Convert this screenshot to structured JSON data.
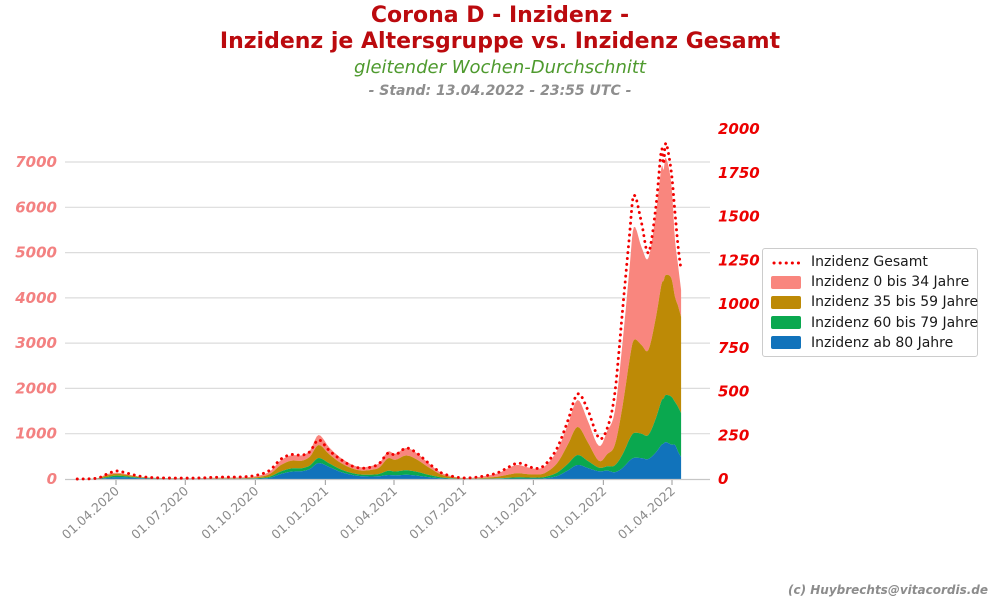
{
  "header": {
    "title_line1": "Corona D - Inzidenz -",
    "title_line2": "Inzidenz je Altersgruppe vs. Inzidenz Gesamt",
    "subtitle": "gleitender Wochen-Durchschnitt",
    "stand": "- Stand: 13.04.2022 - 23:55 UTC -"
  },
  "footer": {
    "copyright": "(c) Huybrechts@vitacordis.de"
  },
  "colors": {
    "title": "#bb0a0e",
    "subtitle": "#4e9a2e",
    "stand": "#8e8e8e",
    "left_axis_labels": "#f38181",
    "right_axis_labels": "#ec0000",
    "x_axis_labels": "#8a8a8a",
    "grid": "#dcdcdc",
    "axis_line": "#c6c6c6",
    "tick_mark": "#aaaaaa",
    "dotted_line": "#f20000",
    "area_0_34": "#f9867e",
    "area_35_59": "#bd8a06",
    "area_60_79": "#0aa84f",
    "area_ab80": "#1173bb",
    "legend_text": "#1a1a1a",
    "copyright": "#8c8c8c"
  },
  "legend": {
    "items": [
      {
        "label": "Inzidenz Gesamt",
        "swatch": "dotted-line",
        "color": "#f20000"
      },
      {
        "label": "Inzidenz 0 bis 34 Jahre",
        "swatch": "patch",
        "color": "#f9867e"
      },
      {
        "label": "Inzidenz 35 bis 59 Jahre",
        "swatch": "patch",
        "color": "#bd8a06"
      },
      {
        "label": "Inzidenz 60 bis 79 Jahre",
        "swatch": "patch",
        "color": "#0aa84f"
      },
      {
        "label": "Inzidenz ab 80 Jahre",
        "swatch": "patch",
        "color": "#1173bb"
      }
    ]
  },
  "chart_data": {
    "type": "area",
    "subtype": "stacked-areas-with-dotted-line-on-secondary-axis",
    "title": "Corona D - Inzidenz - Inzidenz je Altersgruppe vs. Inzidenz Gesamt",
    "grid": true,
    "legend_position": "center-right",
    "axes": {
      "left": {
        "ticks": [
          0,
          1000,
          2000,
          3000,
          4000,
          5000,
          6000,
          7000
        ],
        "range": [
          0,
          7000
        ],
        "applies_to": "stacked age-group areas"
      },
      "right": {
        "ticks": [
          0,
          250,
          500,
          750,
          1000,
          1250,
          1500,
          1750,
          2000
        ],
        "range": [
          0,
          2000
        ],
        "applies_to": "Inzidenz Gesamt dotted line"
      },
      "x": {
        "tick_labels": [
          "01.04.2020",
          "01.07.2020",
          "01.10.2020",
          "01.01.2021",
          "01.04.2021",
          "01.07.2021",
          "01.10.2021",
          "01.01.2022",
          "01.04.2022"
        ]
      }
    },
    "dates": [
      "2020-02-10",
      "2020-03-01",
      "2020-03-10",
      "2020-03-20",
      "2020-04-01",
      "2020-04-12",
      "2020-04-22",
      "2020-05-05",
      "2020-05-20",
      "2020-06-05",
      "2020-06-20",
      "2020-07-05",
      "2020-07-20",
      "2020-08-05",
      "2020-08-20",
      "2020-09-05",
      "2020-09-20",
      "2020-10-05",
      "2020-10-20",
      "2020-11-03",
      "2020-11-17",
      "2020-12-01",
      "2020-12-12",
      "2020-12-23",
      "2021-01-06",
      "2021-01-20",
      "2021-02-04",
      "2021-02-17",
      "2021-03-02",
      "2021-03-13",
      "2021-03-24",
      "2021-04-03",
      "2021-04-17",
      "2021-05-01",
      "2021-05-15",
      "2021-06-01",
      "2021-06-16",
      "2021-07-01",
      "2021-07-16",
      "2021-08-01",
      "2021-08-16",
      "2021-09-01",
      "2021-09-11",
      "2021-09-23",
      "2021-10-04",
      "2021-10-16",
      "2021-11-01",
      "2021-11-15",
      "2021-11-28",
      "2021-12-11",
      "2021-12-26",
      "2022-01-06",
      "2022-01-16",
      "2022-01-26",
      "2022-02-04",
      "2022-02-10",
      "2022-02-20",
      "2022-03-01",
      "2022-03-11",
      "2022-03-18",
      "2022-03-21",
      "2022-03-24",
      "2022-03-31",
      "2022-04-05",
      "2022-04-09",
      "2022-04-13"
    ],
    "series": [
      {
        "name": "Inzidenz Gesamt",
        "type": "dotted-line",
        "axis": "right",
        "color": "#f20000",
        "values": [
          0,
          2,
          8,
          28,
          46,
          38,
          26,
          14,
          8,
          6,
          5,
          5,
          6,
          9,
          11,
          11,
          14,
          24,
          50,
          112,
          140,
          136,
          158,
          224,
          162,
          115,
          76,
          62,
          68,
          90,
          148,
          138,
          177,
          148,
          96,
          38,
          16,
          6,
          9,
          20,
          37,
          74,
          91,
          76,
          60,
          80,
          175,
          330,
          487,
          400,
          234,
          290,
          490,
          960,
          1380,
          1623,
          1465,
          1291,
          1560,
          1880,
          1800,
          1920,
          1760,
          1520,
          1330,
          1194
        ]
      },
      {
        "name": "Inzidenz ab 80 Jahre",
        "type": "stacked-area",
        "stack_order": 1,
        "axis": "left",
        "color": "#1173bb",
        "values": [
          0,
          1,
          5,
          22,
          42,
          38,
          28,
          15,
          8,
          4,
          3,
          2,
          2,
          2,
          3,
          3,
          5,
          10,
          28,
          108,
          162,
          172,
          225,
          353,
          265,
          162,
          92,
          62,
          56,
          62,
          88,
          80,
          92,
          74,
          44,
          16,
          6,
          2,
          2,
          3,
          5,
          10,
          12,
          11,
          11,
          16,
          65,
          185,
          310,
          245,
          170,
          185,
          150,
          240,
          400,
          465,
          460,
          442,
          590,
          750,
          780,
          815,
          760,
          750,
          600,
          486
        ]
      },
      {
        "name": "Inzidenz 60 bis 79 Jahre",
        "type": "stacked-area",
        "stack_order": 2,
        "axis": "left",
        "color": "#0aa84f",
        "values": [
          0,
          1,
          6,
          20,
          32,
          26,
          18,
          10,
          6,
          4,
          3,
          2,
          2,
          3,
          4,
          4,
          5,
          10,
          24,
          56,
          70,
          66,
          78,
          111,
          80,
          58,
          42,
          36,
          40,
          52,
          92,
          85,
          100,
          84,
          54,
          22,
          9,
          3,
          3,
          6,
          10,
          20,
          25,
          22,
          21,
          28,
          75,
          145,
          220,
          160,
          80,
          95,
          150,
          300,
          470,
          550,
          540,
          529,
          760,
          970,
          1000,
          1040,
          1060,
          950,
          990,
          971
        ]
      },
      {
        "name": "Inzidenz 35 bis 59 Jahre",
        "type": "stacked-area",
        "stack_order": 3,
        "axis": "left",
        "color": "#bd8a06",
        "values": [
          0,
          2,
          12,
          38,
          42,
          34,
          24,
          14,
          9,
          7,
          6,
          5,
          6,
          8,
          10,
          10,
          13,
          24,
          58,
          138,
          172,
          166,
          196,
          287,
          200,
          146,
          106,
          88,
          106,
          142,
          278,
          258,
          328,
          272,
          176,
          68,
          28,
          9,
          11,
          22,
          39,
          76,
          90,
          76,
          68,
          86,
          205,
          420,
          620,
          420,
          150,
          270,
          450,
          1060,
          1730,
          2055,
          1960,
          1878,
          2230,
          2560,
          2600,
          2650,
          2620,
          2320,
          2230,
          2120
        ]
      },
      {
        "name": "Inzidenz 0 bis 34 Jahre",
        "type": "stacked-area",
        "stack_order": 4,
        "axis": "left",
        "color": "#f9867e",
        "values": [
          0,
          2,
          8,
          26,
          24,
          19,
          13,
          8,
          6,
          6,
          6,
          7,
          9,
          14,
          17,
          16,
          18,
          30,
          58,
          106,
          120,
          118,
          138,
          220,
          152,
          116,
          86,
          72,
          86,
          102,
          146,
          136,
          165,
          140,
          96,
          42,
          20,
          10,
          17,
          43,
          76,
          158,
          183,
          151,
          128,
          152,
          275,
          440,
          595,
          480,
          330,
          510,
          750,
          1400,
          2000,
          2495,
          2160,
          2031,
          2300,
          2590,
          2450,
          2583,
          2100,
          1260,
          900,
          596
        ]
      }
    ]
  }
}
